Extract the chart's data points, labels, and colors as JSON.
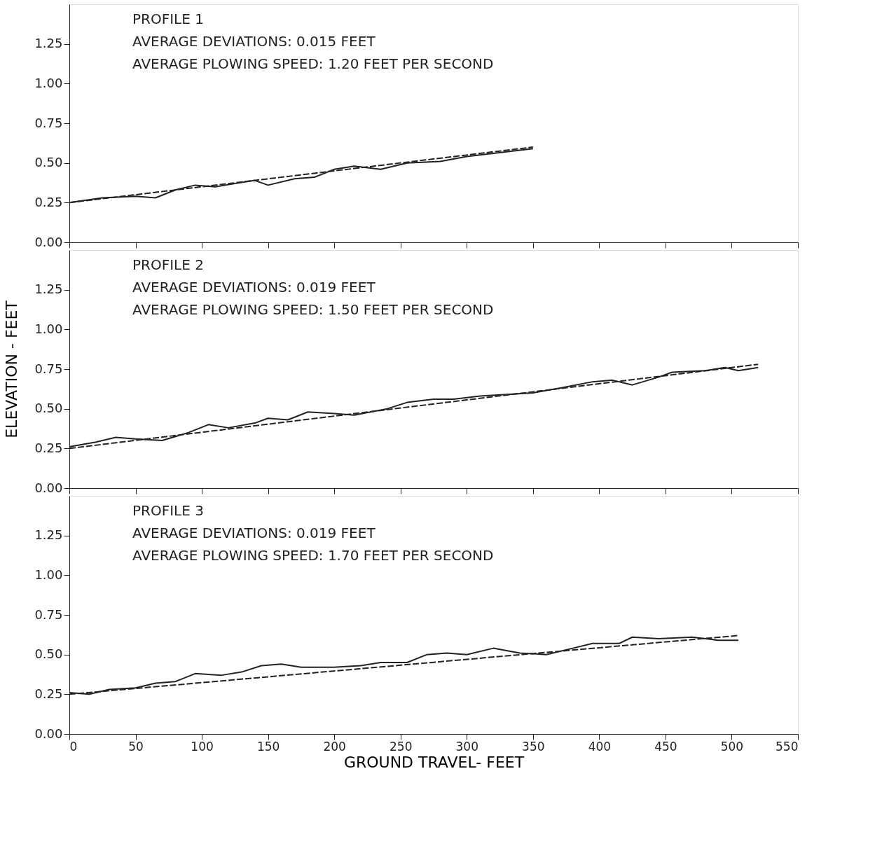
{
  "chart_data": [
    {
      "type": "line",
      "annotations": [
        "PROFILE 1",
        "AVERAGE DEVIATIONS: 0.015 FEET",
        "AVERAGE PLOWING SPEED: 1.20 FEET PER SECOND"
      ],
      "xlim": [
        0,
        550
      ],
      "xticks": [
        0,
        50,
        100,
        150,
        200,
        250,
        300,
        350,
        400,
        450,
        500,
        550
      ],
      "ylim": [
        0,
        1.5
      ],
      "yticks": [
        {
          "value": 0,
          "label": "0.00"
        },
        {
          "value": 0.25,
          "label": "0.25"
        },
        {
          "value": 0.5,
          "label": "0.50"
        },
        {
          "value": 0.75,
          "label": "0.75"
        },
        {
          "value": 1,
          "label": "1.00"
        },
        {
          "value": 1.25,
          "label": "1.25"
        }
      ],
      "tick_labels": "y",
      "grid": false,
      "series": [
        {
          "color": "#222222",
          "line_style": "solid",
          "x": [
            0,
            25,
            50,
            65,
            80,
            95,
            110,
            125,
            140,
            150,
            170,
            185,
            200,
            215,
            235,
            255,
            280,
            300,
            320,
            350
          ],
          "values": [
            0.25,
            0.28,
            0.29,
            0.28,
            0.33,
            0.36,
            0.35,
            0.37,
            0.39,
            0.36,
            0.4,
            0.41,
            0.46,
            0.48,
            0.46,
            0.5,
            0.51,
            0.54,
            0.56,
            0.59
          ]
        },
        {
          "color": "#222222",
          "line_style": "dashed",
          "x": [
            0,
            350
          ],
          "values": [
            0.25,
            0.6
          ]
        }
      ]
    },
    {
      "type": "line",
      "ylabel": "ELEVATION - FEET",
      "annotations": [
        "PROFILE 2",
        "AVERAGE DEVIATIONS: 0.019 FEET",
        "AVERAGE PLOWING SPEED: 1.50 FEET PER SECOND"
      ],
      "xlim": [
        0,
        550
      ],
      "xticks": [
        0,
        50,
        100,
        150,
        200,
        250,
        300,
        350,
        400,
        450,
        500,
        550
      ],
      "ylim": [
        0,
        1.5
      ],
      "yticks": [
        {
          "value": 0,
          "label": "0.00"
        },
        {
          "value": 0.25,
          "label": "0.25"
        },
        {
          "value": 0.5,
          "label": "0.50"
        },
        {
          "value": 0.75,
          "label": "0.75"
        },
        {
          "value": 1,
          "label": "1.00"
        },
        {
          "value": 1.25,
          "label": "1.25"
        }
      ],
      "tick_labels": "y",
      "grid": false,
      "series": [
        {
          "color": "#222222",
          "line_style": "solid",
          "x": [
            0,
            20,
            35,
            50,
            70,
            90,
            105,
            120,
            140,
            150,
            165,
            180,
            200,
            215,
            240,
            255,
            275,
            290,
            310,
            330,
            350,
            370,
            395,
            410,
            425,
            445,
            455,
            480,
            495,
            505,
            520
          ],
          "values": [
            0.26,
            0.29,
            0.32,
            0.31,
            0.3,
            0.35,
            0.4,
            0.38,
            0.41,
            0.44,
            0.43,
            0.48,
            0.47,
            0.46,
            0.5,
            0.54,
            0.56,
            0.56,
            0.58,
            0.59,
            0.6,
            0.63,
            0.67,
            0.68,
            0.65,
            0.7,
            0.73,
            0.74,
            0.76,
            0.74,
            0.76
          ]
        },
        {
          "color": "#222222",
          "line_style": "dashed",
          "x": [
            0,
            520
          ],
          "values": [
            0.25,
            0.78
          ]
        }
      ]
    },
    {
      "type": "line",
      "xlabel": "GROUND TRAVEL- FEET",
      "annotations": [
        "PROFILE 3",
        "AVERAGE DEVIATIONS: 0.019 FEET",
        "AVERAGE PLOWING SPEED: 1.70 FEET PER SECOND"
      ],
      "xlim": [
        0,
        550
      ],
      "xticks": [
        0,
        50,
        100,
        150,
        200,
        250,
        300,
        350,
        400,
        450,
        500,
        550
      ],
      "ylim": [
        0,
        1.5
      ],
      "yticks": [
        {
          "value": 0,
          "label": "0.00"
        },
        {
          "value": 0.25,
          "label": "0.25"
        },
        {
          "value": 0.5,
          "label": "0.50"
        },
        {
          "value": 0.75,
          "label": "0.75"
        },
        {
          "value": 1,
          "label": "1.00"
        },
        {
          "value": 1.25,
          "label": "1.25"
        }
      ],
      "grid": false,
      "series": [
        {
          "color": "#222222",
          "line_style": "solid",
          "x": [
            0,
            15,
            30,
            50,
            65,
            80,
            95,
            115,
            130,
            145,
            160,
            175,
            200,
            220,
            235,
            255,
            270,
            285,
            300,
            320,
            340,
            360,
            380,
            395,
            415,
            425,
            445,
            470,
            490,
            505
          ],
          "values": [
            0.26,
            0.25,
            0.28,
            0.29,
            0.32,
            0.33,
            0.38,
            0.37,
            0.39,
            0.43,
            0.44,
            0.42,
            0.42,
            0.43,
            0.45,
            0.45,
            0.5,
            0.51,
            0.5,
            0.54,
            0.51,
            0.5,
            0.54,
            0.57,
            0.57,
            0.61,
            0.6,
            0.61,
            0.59,
            0.59
          ]
        },
        {
          "color": "#222222",
          "line_style": "dashed",
          "x": [
            0,
            505
          ],
          "values": [
            0.25,
            0.62
          ]
        }
      ]
    }
  ]
}
